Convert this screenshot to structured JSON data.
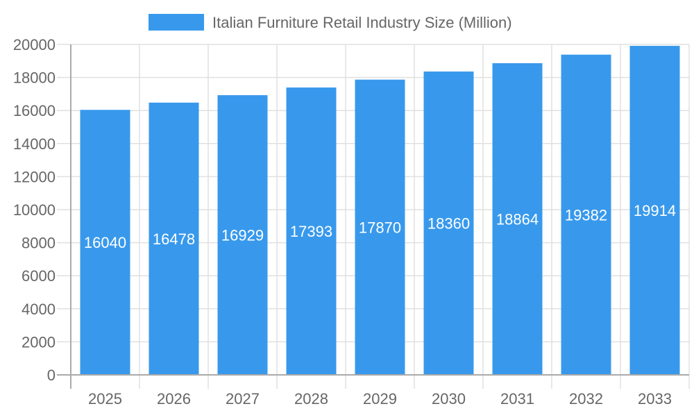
{
  "chart_data": {
    "type": "bar",
    "title": "",
    "xlabel": "",
    "ylabel": "",
    "categories": [
      "2025",
      "2026",
      "2027",
      "2028",
      "2029",
      "2030",
      "2031",
      "2032",
      "2033"
    ],
    "series": [
      {
        "name": "Italian Furniture Retail Industry Size (Million)",
        "values": [
          16040,
          16478,
          16929,
          17393,
          17870,
          18360,
          18864,
          19382,
          19914
        ],
        "color": "#3899ec"
      }
    ],
    "data_labels": true,
    "ylim": [
      0,
      20000
    ],
    "yticks": [
      0,
      2000,
      4000,
      6000,
      8000,
      10000,
      12000,
      14000,
      16000,
      18000,
      20000
    ],
    "grid": true,
    "legend": "top-center"
  }
}
